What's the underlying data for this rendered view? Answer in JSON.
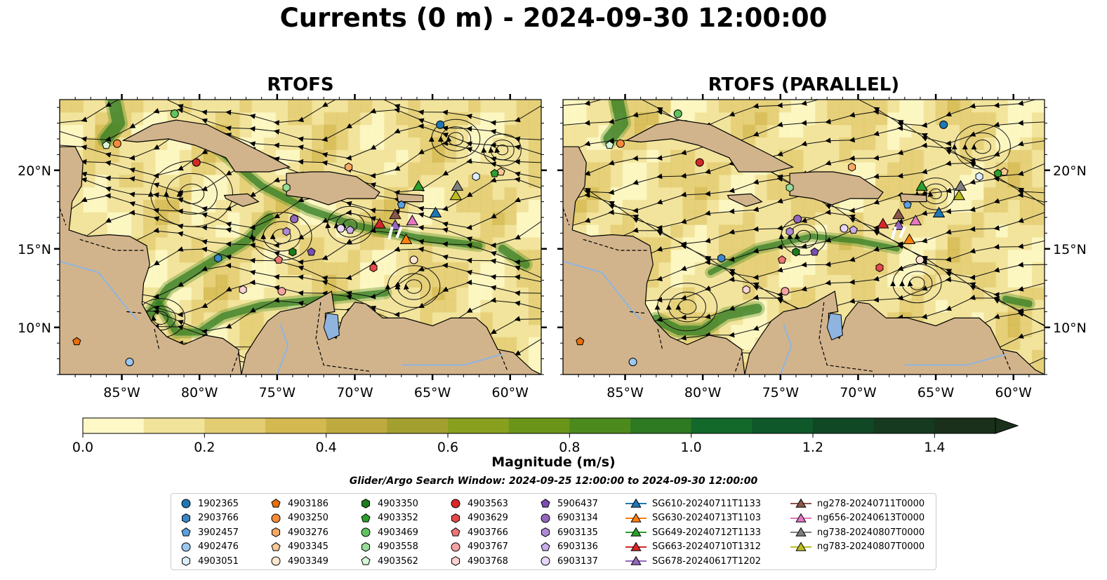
{
  "suptitle": "Currents (0 m) - 2024-09-30 12:00:00",
  "panels": [
    {
      "title": "RTOFS"
    },
    {
      "title": "RTOFS (PARALLEL)"
    }
  ],
  "colorbar": {
    "label": "Magnitude (m/s)",
    "ticks": [
      "0.0",
      "0.2",
      "0.4",
      "0.6",
      "0.8",
      "1.0",
      "1.2",
      "1.4"
    ],
    "range": [
      0,
      1.5
    ],
    "extend": "max",
    "colors": [
      "#fdf8c6",
      "#f1e39a",
      "#e3cd72",
      "#d4b850",
      "#bfaa40",
      "#a3a030",
      "#88a01e",
      "#6b9519",
      "#4d8a1d",
      "#2d7a22",
      "#13692a",
      "#0e582a",
      "#104826",
      "#163a20",
      "#1a301a"
    ]
  },
  "search_window": "Glider/Argo Search Window: 2024-09-25 12:00:00 to 2024-09-30 12:00:00",
  "legend": [
    [
      {
        "label": "1902365",
        "marker": "circle",
        "color": "#1f77b4"
      },
      {
        "label": "2903766",
        "marker": "hexagon",
        "color": "#3a87c8"
      },
      {
        "label": "3902457",
        "marker": "pentagon",
        "color": "#5aa0e0"
      },
      {
        "label": "4902476",
        "marker": "circle",
        "color": "#9bc8f0"
      },
      {
        "label": "4903051",
        "marker": "hexagon",
        "color": "#dceefc"
      }
    ],
    [
      {
        "label": "4903186",
        "marker": "pentagon",
        "color": "#e86f0a"
      },
      {
        "label": "4903250",
        "marker": "circle",
        "color": "#f58a3a"
      },
      {
        "label": "4903276",
        "marker": "hexagon",
        "color": "#f9a862"
      },
      {
        "label": "4903345",
        "marker": "pentagon",
        "color": "#fbc896"
      },
      {
        "label": "4903349",
        "marker": "circle",
        "color": "#fde6cf"
      }
    ],
    [
      {
        "label": "4903350",
        "marker": "hexagon",
        "color": "#1e7a1e"
      },
      {
        "label": "4903352",
        "marker": "pentagon",
        "color": "#2ca02c"
      },
      {
        "label": "4903469",
        "marker": "circle",
        "color": "#5fc45f"
      },
      {
        "label": "4903558",
        "marker": "hexagon",
        "color": "#98dc98"
      },
      {
        "label": "4903562",
        "marker": "pentagon",
        "color": "#d8f5d8"
      }
    ],
    [
      {
        "label": "4903563",
        "marker": "circle",
        "color": "#d62728"
      },
      {
        "label": "4903629",
        "marker": "hexagon",
        "color": "#e34a4a"
      },
      {
        "label": "4903766",
        "marker": "pentagon",
        "color": "#ef7575"
      },
      {
        "label": "4903767",
        "marker": "circle",
        "color": "#f5a2a2"
      },
      {
        "label": "4903768",
        "marker": "hexagon",
        "color": "#fbd2d2"
      }
    ],
    [
      {
        "label": "5906437",
        "marker": "pentagon",
        "color": "#7b4fb2"
      },
      {
        "label": "6903134",
        "marker": "circle",
        "color": "#9467bd"
      },
      {
        "label": "6903135",
        "marker": "hexagon",
        "color": "#ad88d4"
      },
      {
        "label": "6903136",
        "marker": "pentagon",
        "color": "#c9acea"
      },
      {
        "label": "6903137",
        "marker": "circle",
        "color": "#e6d6f8"
      }
    ],
    [
      {
        "label": "SG610-20240711T1133",
        "marker": "triangle",
        "color": "#1f77b4"
      },
      {
        "label": "SG630-20240713T1103",
        "marker": "triangle",
        "color": "#ff7f0e"
      },
      {
        "label": "SG649-20240712T1133",
        "marker": "triangle",
        "color": "#2ca02c"
      },
      {
        "label": "SG663-20240710T1312",
        "marker": "triangle",
        "color": "#d62728"
      },
      {
        "label": "SG678-20240617T1202",
        "marker": "triangle",
        "color": "#9467bd"
      }
    ],
    [
      {
        "label": "ng278-20240711T0000",
        "marker": "triangle",
        "color": "#8c564b"
      },
      {
        "label": "ng656-20240613T0000",
        "marker": "triangle",
        "color": "#e377c2"
      },
      {
        "label": "ng738-20240807T0000",
        "marker": "triangle",
        "color": "#7f7f7f"
      },
      {
        "label": "ng783-20240807T0000",
        "marker": "triangle",
        "color": "#bcbd22"
      }
    ]
  ],
  "chart_data": {
    "type": "map",
    "extent": {
      "lon": [
        -89,
        -58
      ],
      "lat": [
        7,
        24.5
      ]
    },
    "x_ticks": [
      -85,
      -80,
      -75,
      -70,
      -65,
      -60
    ],
    "x_tick_labels": [
      "85°W",
      "80°W",
      "75°W",
      "70°W",
      "65°W",
      "60°W"
    ],
    "y_ticks": [
      10,
      15,
      20
    ],
    "y_tick_labels": [
      "10°N",
      "15°N",
      "20°N"
    ],
    "floats": [
      {
        "id": "1902365",
        "lon": -64.5,
        "lat": 22.9
      },
      {
        "id": "2903766",
        "lon": -78.8,
        "lat": 14.4
      },
      {
        "id": "3902457",
        "lon": -67.0,
        "lat": 17.8
      },
      {
        "id": "4902476",
        "lon": -84.5,
        "lat": 7.8
      },
      {
        "id": "4903051",
        "lon": -62.2,
        "lat": 19.6
      },
      {
        "id": "4903186",
        "lon": -87.9,
        "lat": 9.1
      },
      {
        "id": "4903250",
        "lon": -85.3,
        "lat": 21.7
      },
      {
        "id": "4903276",
        "lon": -70.4,
        "lat": 20.2
      },
      {
        "id": "4903345",
        "lon": -60.6,
        "lat": 19.9
      },
      {
        "id": "4903349",
        "lon": -66.2,
        "lat": 14.3
      },
      {
        "id": "4903350",
        "lon": -74.0,
        "lat": 14.8
      },
      {
        "id": "4903352",
        "lon": -61.0,
        "lat": 19.8
      },
      {
        "id": "4903469",
        "lon": -81.6,
        "lat": 23.6
      },
      {
        "id": "4903558",
        "lon": -74.4,
        "lat": 18.9
      },
      {
        "id": "4903562",
        "lon": -86.0,
        "lat": 21.6
      },
      {
        "id": "4903563",
        "lon": -80.2,
        "lat": 20.5
      },
      {
        "id": "4903629",
        "lon": -68.8,
        "lat": 13.8
      },
      {
        "id": "4903766",
        "lon": -74.9,
        "lat": 14.3
      },
      {
        "id": "4903767",
        "lon": -74.7,
        "lat": 12.3
      },
      {
        "id": "4903768",
        "lon": -77.2,
        "lat": 12.4
      },
      {
        "id": "5906437",
        "lon": -72.8,
        "lat": 14.8
      },
      {
        "id": "6903134",
        "lon": -73.9,
        "lat": 16.9
      },
      {
        "id": "6903135",
        "lon": -74.4,
        "lat": 16.1
      },
      {
        "id": "6903136",
        "lon": -70.3,
        "lat": 16.2
      },
      {
        "id": "6903137",
        "lon": -70.9,
        "lat": 16.3
      }
    ],
    "gliders": [
      {
        "id": "SG610-20240711T1133",
        "lon": -64.8,
        "lat": 17.3
      },
      {
        "id": "SG630-20240713T1103",
        "lon": -66.7,
        "lat": 15.6
      },
      {
        "id": "SG649-20240712T1133",
        "lon": -65.9,
        "lat": 19.0
      },
      {
        "id": "SG663-20240710T1312",
        "lon": -68.4,
        "lat": 16.6
      },
      {
        "id": "SG678-20240617T1202",
        "lon": -67.4,
        "lat": 16.5
      },
      {
        "id": "ng278-20240711T0000",
        "lon": -67.4,
        "lat": 17.2
      },
      {
        "id": "ng656-20240613T0000",
        "lon": -66.3,
        "lat": 16.8
      },
      {
        "id": "ng738-20240807T0000",
        "lon": -63.4,
        "lat": 19.0
      },
      {
        "id": "ng783-20240807T0000",
        "lon": -63.5,
        "lat": 18.4
      }
    ]
  }
}
